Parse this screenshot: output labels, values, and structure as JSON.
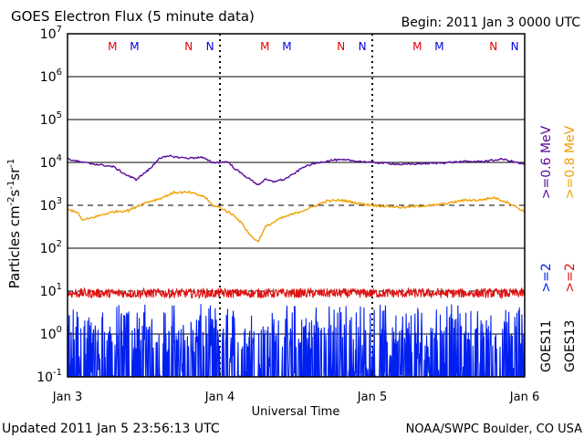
{
  "chart_data": {
    "type": "line",
    "title": "GOES Electron Flux (5 minute data)",
    "begin_label": "Begin: 2011 Jan 3 0000 UTC",
    "xlabel": "Universal Time",
    "ylabel_parts": [
      "Particles cm",
      "-2",
      "s",
      "-1",
      "sr",
      "-1"
    ],
    "x_ticks": [
      "Jan 3",
      "Jan 4",
      "Jan 5",
      "Jan 6"
    ],
    "xlim_days": [
      0,
      3
    ],
    "ylim_log10": [
      -1,
      7
    ],
    "y_ticks": [
      {
        "base": "10",
        "exp": "7",
        "value": 7
      },
      {
        "base": "10",
        "exp": "6",
        "value": 6
      },
      {
        "base": "10",
        "exp": "5",
        "value": 5
      },
      {
        "base": "10",
        "exp": "4",
        "value": 4
      },
      {
        "base": "10",
        "exp": "3",
        "value": 3
      },
      {
        "base": "10",
        "exp": "2",
        "value": 2
      },
      {
        "base": "10",
        "exp": "1",
        "value": 1
      },
      {
        "base": "10",
        "exp": "0",
        "value": 0
      },
      {
        "base": "10",
        "exp": "-1",
        "value": -1
      }
    ],
    "threshold_lines_log10": [
      {
        "value": 3,
        "style": "dashed"
      },
      {
        "value": 1,
        "style": "dashed"
      }
    ],
    "mn_markers": [
      {
        "day": 0.295,
        "label": "M",
        "color": "#e00000"
      },
      {
        "day": 0.44,
        "label": "M",
        "color": "#0000e0"
      },
      {
        "day": 0.795,
        "label": "N",
        "color": "#e00000"
      },
      {
        "day": 0.935,
        "label": "N",
        "color": "#0000e0"
      },
      {
        "day": 1.295,
        "label": "M",
        "color": "#e00000"
      },
      {
        "day": 1.44,
        "label": "M",
        "color": "#0000e0"
      },
      {
        "day": 1.795,
        "label": "N",
        "color": "#e00000"
      },
      {
        "day": 1.935,
        "label": "N",
        "color": "#0000e0"
      },
      {
        "day": 2.295,
        "label": "M",
        "color": "#e00000"
      },
      {
        "day": 2.44,
        "label": "M",
        "color": "#0000e0"
      },
      {
        "day": 2.795,
        "label": "N",
        "color": "#e00000"
      },
      {
        "day": 2.935,
        "label": "N",
        "color": "#0000e0"
      }
    ],
    "series": [
      {
        "name": ">=0.6 MeV",
        "satellite": "GOES11",
        "color": "#5a0a9a",
        "x_days": [
          0.0,
          0.1,
          0.2,
          0.3,
          0.38,
          0.45,
          0.55,
          0.6,
          0.68,
          0.72,
          0.8,
          0.88,
          0.95,
          1.0,
          1.05,
          1.1,
          1.15,
          1.2,
          1.25,
          1.3,
          1.35,
          1.38,
          1.42,
          1.48,
          1.55,
          1.65,
          1.75,
          1.85,
          1.9,
          2.0,
          2.1,
          2.2,
          2.3,
          2.4,
          2.5,
          2.6,
          2.7,
          2.8,
          2.85,
          2.9,
          3.0
        ],
        "log10_values": [
          4.08,
          4.0,
          3.95,
          3.9,
          3.72,
          3.6,
          3.88,
          4.1,
          4.15,
          4.12,
          4.1,
          4.12,
          4.0,
          4.0,
          4.02,
          3.85,
          3.72,
          3.6,
          3.48,
          3.6,
          3.55,
          3.58,
          3.6,
          3.72,
          3.9,
          4.0,
          4.06,
          4.05,
          4.03,
          4.0,
          3.98,
          3.95,
          3.97,
          3.98,
          4.0,
          4.02,
          4.02,
          4.05,
          4.08,
          4.04,
          3.95
        ]
      },
      {
        "name": ">=0.8 MeV",
        "satellite": "GOES13",
        "color": "#f0a000",
        "x_days": [
          0.0,
          0.06,
          0.1,
          0.2,
          0.3,
          0.4,
          0.5,
          0.6,
          0.7,
          0.8,
          0.9,
          0.95,
          1.0,
          1.05,
          1.1,
          1.15,
          1.2,
          1.25,
          1.3,
          1.4,
          1.5,
          1.6,
          1.7,
          1.8,
          1.9,
          2.0,
          2.1,
          2.2,
          2.3,
          2.4,
          2.5,
          2.6,
          2.7,
          2.8,
          2.9,
          3.0
        ],
        "log10_values": [
          2.9,
          2.85,
          2.65,
          2.75,
          2.85,
          2.88,
          3.05,
          3.15,
          3.3,
          3.3,
          3.2,
          3.0,
          2.95,
          2.85,
          2.75,
          2.55,
          2.3,
          2.15,
          2.5,
          2.7,
          2.82,
          2.95,
          3.1,
          3.12,
          3.05,
          3.0,
          2.98,
          2.95,
          2.98,
          3.0,
          3.05,
          3.12,
          3.12,
          3.18,
          3.05,
          2.85
        ]
      },
      {
        "name": ">=2 MeV",
        "satellite": "GOES13",
        "color": "#e01010",
        "level_log10": 0.95
      },
      {
        "name": ">=2 MeV",
        "satellite": "GOES11",
        "color": "#0020f0",
        "level_log10": "spiky"
      }
    ],
    "right_legend": {
      "col1": {
        "sat": "GOES11",
        "red": "",
        "blue": ">=2",
        "purple": ">=0.6 MeV",
        "orange": ""
      },
      "col2": {
        "sat": "GOES13",
        "red": ">=2",
        "orange": ">=0.8 MeV"
      }
    },
    "grid": "decade lines"
  },
  "footer": {
    "updated": "Updated 2011 Jan  5 23:56:13 UTC",
    "credit": "NOAA/SWPC Boulder, CO USA"
  }
}
